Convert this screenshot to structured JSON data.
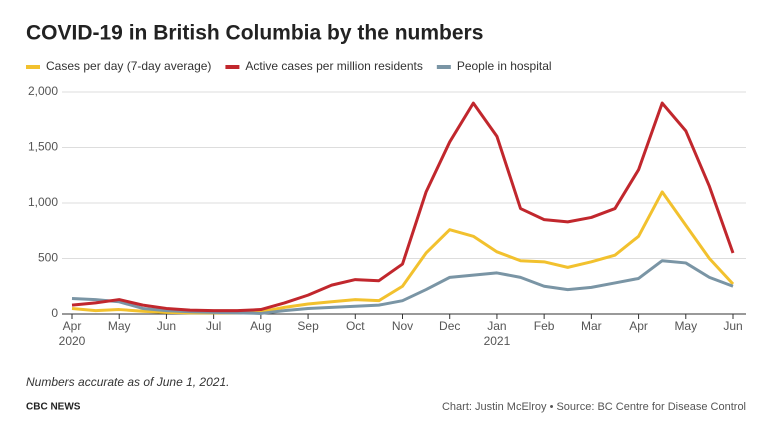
{
  "chart_data": {
    "type": "line",
    "title": "COVID-19 in British Columbia by the numbers",
    "note": "Numbers accurate as of June 1, 2021.",
    "source_left": "CBC NEWS",
    "source_right": "Chart: Justin McElroy • Source: BC Centre for Disease Control",
    "x": [
      0,
      0.5,
      1,
      1.5,
      2,
      2.5,
      3,
      3.5,
      4,
      4.5,
      5,
      5.5,
      6,
      6.5,
      7,
      7.5,
      8,
      8.5,
      9,
      9.5,
      10,
      10.5,
      11,
      11.5,
      12,
      12.5,
      13,
      13.5,
      14
    ],
    "series": [
      {
        "name": "Cases per day (7-day average)",
        "color": "#f2c12e",
        "values": [
          50,
          30,
          40,
          25,
          15,
          10,
          10,
          10,
          20,
          60,
          90,
          110,
          130,
          120,
          250,
          550,
          760,
          700,
          560,
          480,
          470,
          420,
          470,
          530,
          700,
          1100,
          800,
          500,
          270
        ]
      },
      {
        "name": "Active cases per million residents",
        "color": "#c1272d",
        "values": [
          80,
          100,
          130,
          80,
          50,
          35,
          30,
          30,
          40,
          100,
          170,
          260,
          310,
          300,
          450,
          1100,
          1550,
          1900,
          1600,
          950,
          850,
          830,
          870,
          950,
          1300,
          1900,
          1650,
          1150,
          550
        ]
      },
      {
        "name": "People in hospital",
        "color": "#7a95a5",
        "values": [
          140,
          130,
          110,
          50,
          30,
          20,
          15,
          10,
          5,
          30,
          50,
          60,
          70,
          80,
          120,
          220,
          330,
          350,
          370,
          330,
          250,
          220,
          240,
          280,
          320,
          480,
          460,
          330,
          250
        ]
      }
    ],
    "xlim": [
      0,
      14
    ],
    "xticks": [
      {
        "value": 0,
        "label": "Apr"
      },
      {
        "value": 1,
        "label": "May"
      },
      {
        "value": 2,
        "label": "Jun"
      },
      {
        "value": 3,
        "label": "Jul"
      },
      {
        "value": 4,
        "label": "Aug"
      },
      {
        "value": 5,
        "label": "Sep"
      },
      {
        "value": 6,
        "label": "Oct"
      },
      {
        "value": 7,
        "label": "Nov"
      },
      {
        "value": 8,
        "label": "Dec"
      },
      {
        "value": 9,
        "label": "Jan"
      },
      {
        "value": 10,
        "label": "Feb"
      },
      {
        "value": 11,
        "label": "Mar"
      },
      {
        "value": 12,
        "label": "Apr"
      },
      {
        "value": 13,
        "label": "May"
      },
      {
        "value": 14,
        "label": "Jun"
      }
    ],
    "year_labels": [
      {
        "value": 0,
        "label": "2020"
      },
      {
        "value": 9,
        "label": "2021"
      }
    ],
    "ylim": [
      0,
      2000
    ],
    "yticks": [
      0,
      {
        "value": 500,
        "label": "500"
      },
      {
        "value": 1000,
        "label": "1,000"
      },
      {
        "value": 1500,
        "label": "1,500"
      },
      {
        "value": 2000,
        "label": "2,000"
      }
    ],
    "grid": true
  }
}
